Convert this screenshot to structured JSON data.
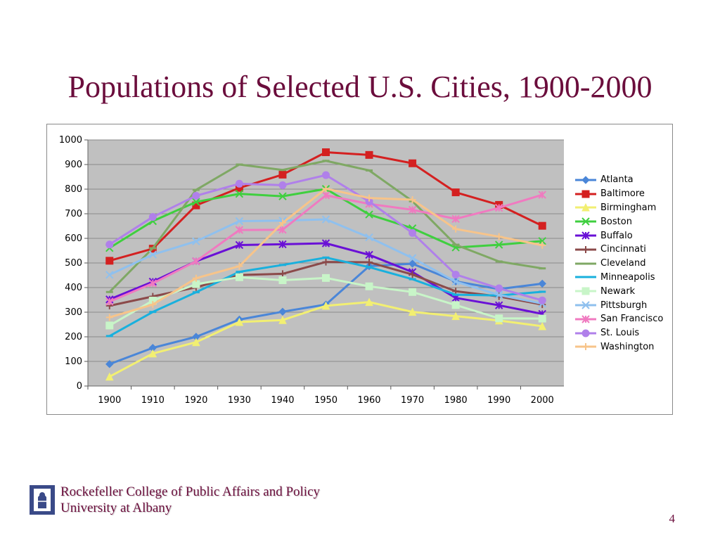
{
  "slide": {
    "title": "Populations of Selected U.S. Cities, 1900-2000",
    "footer_line1": "Rockefeller College of Public Affairs and Policy",
    "footer_line2": "University at Albany",
    "page_number": "4"
  },
  "colors": {
    "title": "#6b0d3c",
    "plot_background": "#c0c0c0",
    "gridline": "#8a8a8a"
  },
  "chart_data": {
    "type": "line",
    "title": "",
    "xlabel": "",
    "ylabel": "",
    "x": [
      "1900",
      "1910",
      "1920",
      "1930",
      "1940",
      "1950",
      "1960",
      "1970",
      "1980",
      "1990",
      "2000"
    ],
    "ylim": [
      0,
      1000
    ],
    "yticks": [
      0,
      100,
      200,
      300,
      400,
      500,
      600,
      700,
      800,
      900,
      1000
    ],
    "grid": true,
    "legend_position": "right",
    "series": [
      {
        "name": "Atlanta",
        "color": "#4a86d8",
        "marker": "diamond",
        "values": [
          89,
          155,
          200,
          270,
          302,
          331,
          487,
          497,
          425,
          394,
          416
        ]
      },
      {
        "name": "Baltimore",
        "color": "#d42020",
        "marker": "square",
        "values": [
          509,
          558,
          734,
          805,
          859,
          950,
          939,
          905,
          787,
          736,
          651
        ]
      },
      {
        "name": "Birmingham",
        "color": "#f2ef72",
        "marker": "triangle",
        "values": [
          38,
          132,
          178,
          260,
          268,
          326,
          341,
          301,
          284,
          266,
          243
        ]
      },
      {
        "name": "Boston",
        "color": "#3fcf3f",
        "marker": "x",
        "values": [
          561,
          670,
          748,
          781,
          771,
          801,
          697,
          641,
          563,
          574,
          589
        ]
      },
      {
        "name": "Buffalo",
        "color": "#6a10d6",
        "marker": "star",
        "values": [
          352,
          424,
          507,
          573,
          576,
          580,
          533,
          463,
          358,
          328,
          293
        ]
      },
      {
        "name": "Cincinnati",
        "color": "#8b4a4a",
        "marker": "plus",
        "values": [
          326,
          364,
          401,
          451,
          456,
          504,
          503,
          453,
          385,
          364,
          331
        ]
      },
      {
        "name": "Cleveland",
        "color": "#7fa864",
        "marker": "dash",
        "values": [
          382,
          560,
          797,
          900,
          878,
          915,
          876,
          751,
          574,
          506,
          478
        ]
      },
      {
        "name": "Minneapolis",
        "color": "#19b0dd",
        "marker": "dash",
        "values": [
          203,
          301,
          381,
          464,
          492,
          522,
          483,
          434,
          371,
          368,
          383
        ]
      },
      {
        "name": "Newark",
        "color": "#c8f5c8",
        "marker": "square",
        "values": [
          246,
          347,
          414,
          442,
          430,
          439,
          405,
          382,
          329,
          275,
          274
        ]
      },
      {
        "name": "Pittsburgh",
        "color": "#8fc0ee",
        "marker": "x",
        "values": [
          452,
          534,
          588,
          670,
          672,
          677,
          604,
          520,
          424,
          370,
          335
        ]
      },
      {
        "name": "San Francisco",
        "color": "#f07ac0",
        "marker": "star",
        "values": [
          343,
          417,
          507,
          634,
          635,
          775,
          740,
          716,
          679,
          724,
          777
        ]
      },
      {
        "name": "St. Louis",
        "color": "#b080ea",
        "marker": "circle",
        "values": [
          575,
          687,
          773,
          822,
          816,
          857,
          750,
          622,
          453,
          397,
          348
        ]
      },
      {
        "name": "Washington",
        "color": "#f7c48a",
        "marker": "plus",
        "values": [
          279,
          331,
          438,
          487,
          663,
          802,
          764,
          757,
          638,
          607,
          572
        ]
      }
    ]
  }
}
